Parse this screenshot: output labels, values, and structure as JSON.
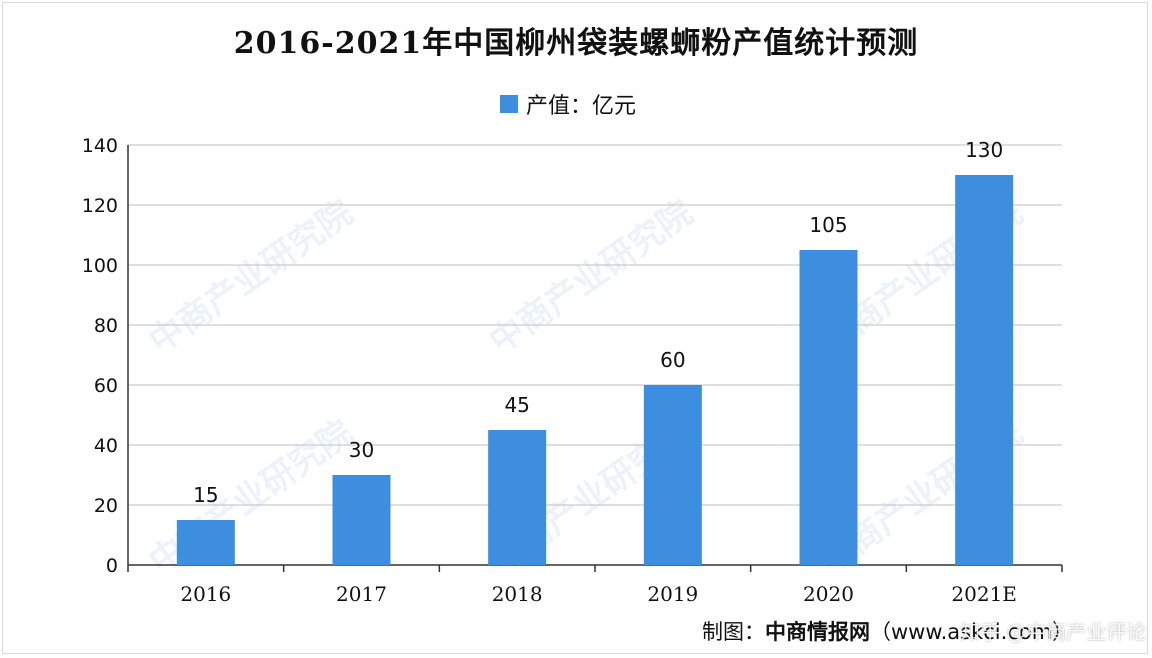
{
  "chart_data": {
    "type": "bar",
    "title": "2016-2021年中国柳州袋装螺蛳粉产值统计预测",
    "legend": "产值：亿元",
    "categories": [
      "2016",
      "2017",
      "2018",
      "2019",
      "2020",
      "2021E"
    ],
    "series": [
      {
        "name": "产值：亿元",
        "values": [
          15,
          30,
          45,
          60,
          105,
          130
        ]
      }
    ],
    "data_labels": [
      "15",
      "30",
      "45",
      "60",
      "105",
      "130"
    ],
    "ylim": [
      0,
      140
    ],
    "yticks": [
      "0",
      "20",
      "40",
      "60",
      "80",
      "100",
      "120",
      "140"
    ],
    "grid": true,
    "legend_position": "top-center",
    "bar_color": "#3e8ee0"
  },
  "source": {
    "label": "制图：",
    "org": "中商情报网",
    "url": "（www.askci.com）"
  },
  "corner_watermark": "知乎 @中商产业评论",
  "watermark_text": "中商产业研究院"
}
